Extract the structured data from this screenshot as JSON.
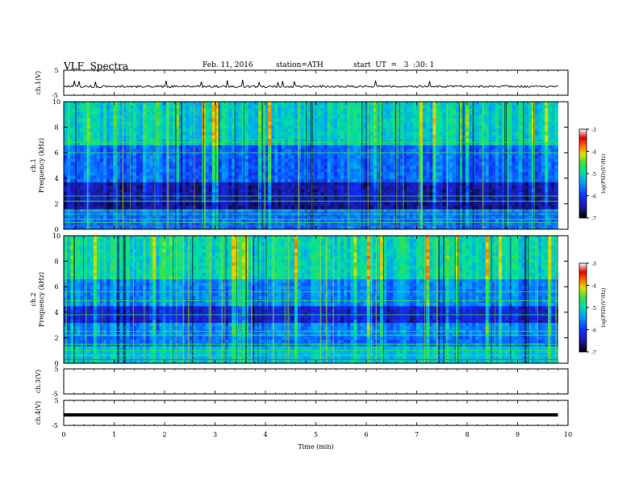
{
  "header": {
    "title": "VLF  Spectra",
    "date": "Feb. 11, 2016",
    "station": "station=ATH",
    "start": "start  UT  =   3  :30: 1"
  },
  "chart_data": [
    {
      "type": "line",
      "panel": "ch1-waveform",
      "ylabel": "ch.1(V)",
      "ylim": [
        -5,
        5
      ],
      "yticks": [
        "5",
        "-5"
      ],
      "xlim": [
        0,
        10
      ],
      "series": [
        {
          "values_summary": "noise around -1.5 V with sparse spikes up to ~+1 V"
        }
      ]
    },
    {
      "type": "heatmap",
      "panel": "ch1-spectrogram",
      "ylabel": "ch.1\nFrequency  (kHz)",
      "ylabel_top": "ch.1",
      "ylabel_bottom": "Frequency  (kHz)",
      "ylim": [
        0,
        10
      ],
      "yticks": [
        "0",
        "2",
        "4",
        "6",
        "8",
        "10"
      ],
      "xlim": [
        0,
        10
      ],
      "colorbar": {
        "label": "log(PSD)(V²/Hz)",
        "range": [
          -7,
          -3
        ],
        "ticks": [
          "-3",
          "-4",
          "-5",
          "-6",
          "-7"
        ]
      }
    },
    {
      "type": "heatmap",
      "panel": "ch2-spectrogram",
      "ylabel_top": "ch.2",
      "ylabel_bottom": "Frequency  (kHz)",
      "ylim": [
        0,
        10
      ],
      "yticks": [
        "0",
        "2",
        "4",
        "6",
        "8",
        "10"
      ],
      "xlim": [
        0,
        10
      ],
      "colorbar": {
        "label": "log(PSD)(V²/Hz)",
        "range": [
          -7,
          -3
        ],
        "ticks": [
          "-3",
          "-4",
          "-5",
          "-6",
          "-7"
        ]
      }
    },
    {
      "type": "line",
      "panel": "ch3-waveform",
      "ylabel": "ch.3(V)",
      "ylim": [
        -5,
        5
      ],
      "yticks": [
        "5",
        "-5"
      ],
      "series": []
    },
    {
      "type": "line",
      "panel": "ch4-waveform",
      "ylabel": "ch.4(V)",
      "ylim": [
        -5,
        5
      ],
      "yticks": [
        "5",
        "-5"
      ],
      "series": [
        {
          "values_summary": "flat thick trace near -1 V"
        }
      ]
    }
  ],
  "xaxis": {
    "label": "Time  (min)",
    "range": [
      0,
      10
    ],
    "ticks": [
      "0",
      "1",
      "2",
      "3",
      "4",
      "5",
      "6",
      "7",
      "8",
      "9",
      "10"
    ],
    "data_end": 9.8
  }
}
